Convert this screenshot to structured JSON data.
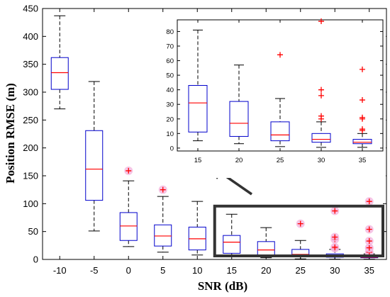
{
  "chart_data": {
    "type": "boxplot",
    "xlabel": "SNR (dB)",
    "ylabel": "Position RMSE (m)",
    "categories": [
      "-10",
      "-5",
      "0",
      "5",
      "10",
      "15",
      "20",
      "25",
      "30",
      "35"
    ],
    "ylim": [
      0,
      450
    ],
    "yticks": [
      0,
      50,
      100,
      150,
      200,
      250,
      300,
      350,
      400,
      450
    ],
    "grid": false,
    "colors": {
      "box": "#0000cc",
      "median": "#ff0000",
      "outlier": "#ff0000",
      "highlight": "#333333",
      "outlier_halo": "#f4b8e0"
    },
    "boxes": [
      {
        "snr": "-10",
        "whisker_low": 270,
        "q1": 305,
        "median": 335,
        "q3": 362,
        "whisker_high": 437,
        "outliers": []
      },
      {
        "snr": "-5",
        "whisker_low": 51,
        "q1": 106,
        "median": 162,
        "q3": 231,
        "whisker_high": 319,
        "outliers": []
      },
      {
        "snr": "0",
        "whisker_low": 23,
        "q1": 34,
        "median": 60,
        "q3": 84,
        "whisker_high": 141,
        "outliers": [
          159
        ]
      },
      {
        "snr": "5",
        "whisker_low": 13,
        "q1": 24,
        "median": 42,
        "q3": 62,
        "whisker_high": 113,
        "outliers": [
          125
        ]
      },
      {
        "snr": "10",
        "whisker_low": 8,
        "q1": 17,
        "median": 37,
        "q3": 58,
        "whisker_high": 104,
        "outliers": []
      },
      {
        "snr": "15",
        "whisker_low": 5,
        "q1": 11,
        "median": 31,
        "q3": 43,
        "whisker_high": 81,
        "outliers": []
      },
      {
        "snr": "20",
        "whisker_low": 3,
        "q1": 8,
        "median": 17,
        "q3": 32,
        "whisker_high": 57,
        "outliers": []
      },
      {
        "snr": "25",
        "whisker_low": 1,
        "q1": 5,
        "median": 9,
        "q3": 18,
        "whisker_high": 34,
        "outliers": [
          64
        ]
      },
      {
        "snr": "30",
        "whisker_low": 0.5,
        "q1": 4,
        "median": 6,
        "q3": 10,
        "whisker_high": 18,
        "outliers": [
          20,
          22,
          36,
          40,
          87
        ]
      },
      {
        "snr": "35",
        "whisker_low": 0.5,
        "q1": 3,
        "median": 4,
        "q3": 6,
        "whisker_high": 10,
        "outliers": [
          12,
          13,
          20,
          21,
          33,
          54,
          104
        ]
      }
    ],
    "inset": {
      "categories": [
        "15",
        "20",
        "25",
        "30",
        "35"
      ],
      "ylim": [
        -2,
        88
      ],
      "yticks": [
        0,
        10,
        20,
        30,
        40,
        50,
        60,
        70,
        80
      ],
      "boxes": [
        {
          "snr": "15",
          "whisker_low": 5,
          "q1": 11,
          "median": 31,
          "q3": 43,
          "whisker_high": 81,
          "outliers": []
        },
        {
          "snr": "20",
          "whisker_low": 3,
          "q1": 8,
          "median": 17,
          "q3": 32,
          "whisker_high": 57,
          "outliers": []
        },
        {
          "snr": "25",
          "whisker_low": 1,
          "q1": 5,
          "median": 9,
          "q3": 18,
          "whisker_high": 34,
          "outliers": [
            64
          ]
        },
        {
          "snr": "30",
          "whisker_low": 0.5,
          "q1": 4,
          "median": 6,
          "q3": 10,
          "whisker_high": 18,
          "outliers": [
            20,
            22,
            36,
            40,
            87
          ]
        },
        {
          "snr": "35",
          "whisker_low": 0.5,
          "q1": 3,
          "median": 4,
          "q3": 6,
          "whisker_high": 10,
          "outliers": [
            12,
            13,
            20,
            21,
            33,
            54
          ]
        }
      ]
    }
  }
}
